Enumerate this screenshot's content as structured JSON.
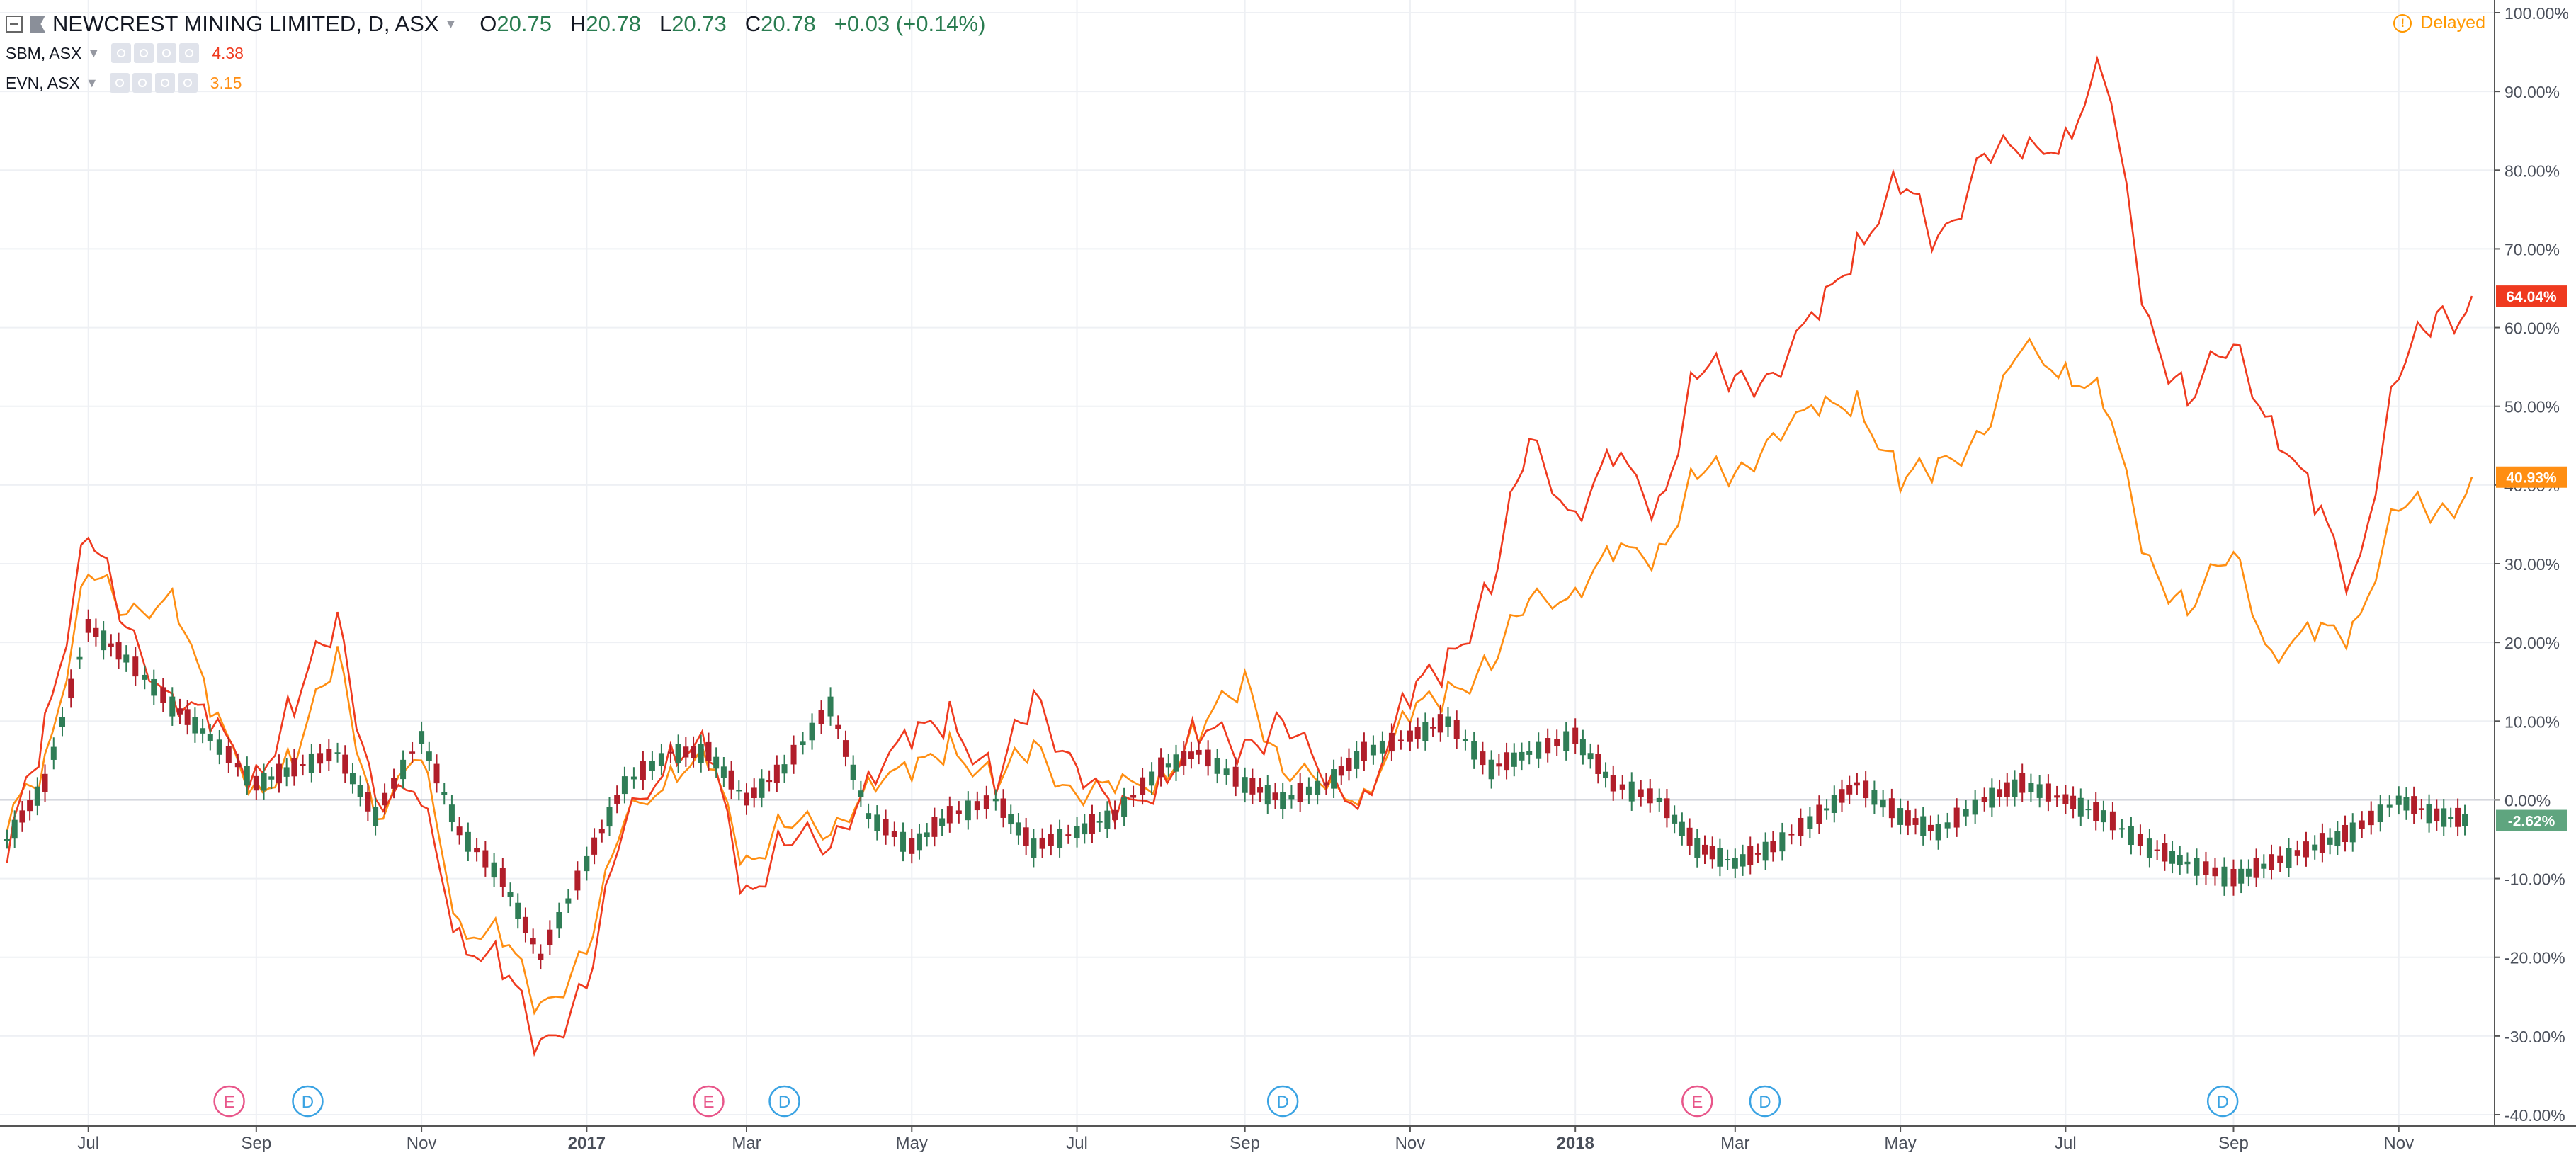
{
  "header": {
    "symbol_title": "NEWCREST MINING LIMITED, D, ASX",
    "open_label": "O",
    "open": "20.75",
    "high_label": "H",
    "high": "20.78",
    "low_label": "L",
    "low": "20.73",
    "close_label": "C",
    "close": "20.78",
    "change": "+0.03 (+0.14%)"
  },
  "compare": [
    {
      "symbol": "SBM, ASX",
      "value": "4.38"
    },
    {
      "symbol": "EVN, ASX",
      "value": "3.15"
    }
  ],
  "status": {
    "delayed": "Delayed"
  },
  "colors": {
    "sbm": "#ef3a1f",
    "evn": "#ff8e12",
    "up": "#2f7d56",
    "down": "#b11e2a",
    "earnings": "#e8568a",
    "dividend": "#3aa3e3"
  },
  "chart_data": {
    "type": "line",
    "y_axis_unit": "percent change from start",
    "ylim": [
      -40,
      100
    ],
    "y_ticks": [
      "100.00%",
      "90.00%",
      "80.00%",
      "70.00%",
      "60.00%",
      "50.00%",
      "40.00%",
      "30.00%",
      "20.00%",
      "10.00%",
      "0.00%",
      "-10.00%",
      "-20.00%",
      "-30.00%",
      "-40.00%"
    ],
    "x_ticks": [
      "Jul",
      "Sep",
      "Nov",
      "2017",
      "Mar",
      "May",
      "Jul",
      "Sep",
      "Nov",
      "2018",
      "Mar",
      "May",
      "Jul",
      "Sep",
      "Nov"
    ],
    "x_dates": [
      "2016-06-01",
      "2016-06-15",
      "2016-07-01",
      "2016-07-15",
      "2016-08-01",
      "2016-08-15",
      "2016-09-01",
      "2016-09-15",
      "2016-10-01",
      "2016-10-15",
      "2016-11-01",
      "2016-11-15",
      "2016-12-01",
      "2016-12-15",
      "2017-01-01",
      "2017-01-15",
      "2017-02-01",
      "2017-02-15",
      "2017-03-01",
      "2017-03-15",
      "2017-04-01",
      "2017-04-15",
      "2017-05-01",
      "2017-05-15",
      "2017-06-01",
      "2017-06-15",
      "2017-07-01",
      "2017-07-15",
      "2017-08-01",
      "2017-08-15",
      "2017-09-01",
      "2017-09-15",
      "2017-10-01",
      "2017-10-15",
      "2017-11-01",
      "2017-11-15",
      "2017-12-01",
      "2017-12-15",
      "2018-01-01",
      "2018-01-15",
      "2018-02-01",
      "2018-02-15",
      "2018-03-01",
      "2018-03-15",
      "2018-04-01",
      "2018-04-15",
      "2018-05-01",
      "2018-05-15",
      "2018-06-01",
      "2018-06-15",
      "2018-07-01",
      "2018-07-15",
      "2018-08-01",
      "2018-08-15",
      "2018-09-01",
      "2018-09-15",
      "2018-10-01",
      "2018-10-15",
      "2018-11-01",
      "2018-11-15",
      "2018-11-28"
    ],
    "series": [
      {
        "name": "SBM, ASX",
        "color": "#ef3a1f",
        "last_label": "64.04%",
        "values": [
          -8,
          10,
          35,
          20,
          15,
          8,
          4,
          12,
          22,
          2,
          -2,
          -16,
          -22,
          -32,
          -22,
          -5,
          8,
          5,
          -12,
          -4,
          -8,
          5,
          6,
          12,
          2,
          12,
          6,
          -4,
          4,
          8,
          6,
          12,
          0,
          2,
          12,
          18,
          28,
          44,
          38,
          42,
          38,
          55,
          52,
          56,
          60,
          72,
          78,
          70,
          84,
          80,
          86,
          92,
          60,
          52,
          56,
          50,
          36,
          28,
          55,
          60,
          64
        ]
      },
      {
        "name": "EVN, ASX",
        "color": "#ff8e12",
        "last_label": "40.93%",
        "values": [
          -4,
          5,
          30,
          22,
          28,
          10,
          2,
          5,
          18,
          -1,
          4,
          -15,
          -18,
          -27,
          -18,
          -4,
          5,
          4,
          -8,
          -2,
          -6,
          4,
          2,
          8,
          2,
          6,
          2,
          0,
          4,
          8,
          15,
          5,
          0,
          2,
          10,
          14,
          18,
          24,
          28,
          30,
          32,
          42,
          40,
          48,
          48,
          52,
          40,
          42,
          48,
          56,
          56,
          50,
          30,
          25,
          30,
          20,
          20,
          22,
          38,
          35,
          41
        ]
      },
      {
        "name": "NEWCREST MINING LIMITED",
        "color": "#2f7d56",
        "last_label": "-2.62%",
        "values": [
          -5,
          2,
          22,
          18,
          12,
          8,
          2,
          4,
          6,
          -2,
          8,
          -4,
          -10,
          -20,
          -8,
          2,
          6,
          6,
          0,
          4,
          12,
          -2,
          -6,
          -2,
          0,
          -6,
          -4,
          -2,
          4,
          6,
          2,
          0,
          2,
          6,
          8,
          10,
          4,
          6,
          8,
          2,
          0,
          -6,
          -8,
          -6,
          -2,
          2,
          -2,
          -4,
          0,
          2,
          0,
          -2,
          -6,
          -8,
          -10,
          -8,
          -6,
          -4,
          0,
          -2,
          -2.62
        ]
      }
    ],
    "events": [
      {
        "label": "E",
        "kind": "earnings",
        "date": "2016-08-22"
      },
      {
        "label": "D",
        "kind": "dividend",
        "date": "2016-09-20"
      },
      {
        "label": "E",
        "kind": "earnings",
        "date": "2017-02-15"
      },
      {
        "label": "D",
        "kind": "dividend",
        "date": "2017-03-15"
      },
      {
        "label": "D",
        "kind": "dividend",
        "date": "2017-09-15"
      },
      {
        "label": "E",
        "kind": "earnings",
        "date": "2018-02-15"
      },
      {
        "label": "D",
        "kind": "dividend",
        "date": "2018-03-12"
      },
      {
        "label": "D",
        "kind": "dividend",
        "date": "2018-08-28"
      }
    ],
    "zero_line_value": 0,
    "grid": true
  }
}
